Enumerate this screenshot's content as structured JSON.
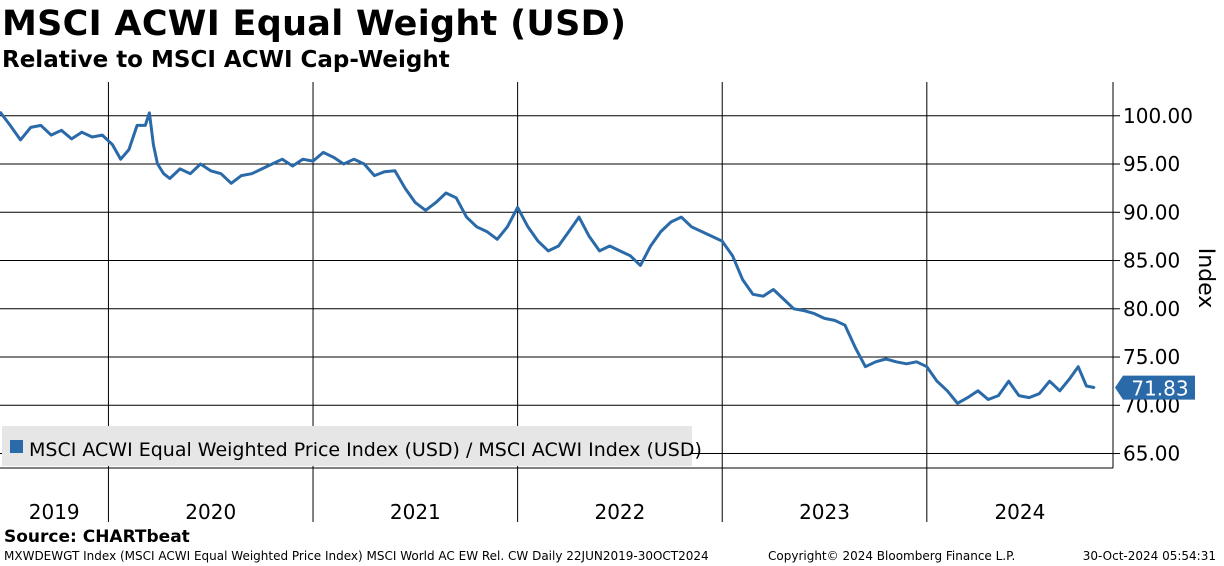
{
  "header": {
    "title": "MSCI ACWI Equal Weight (USD)",
    "subtitle": "Relative to MSCI ACWI Cap-Weight"
  },
  "footer": {
    "source": "Source: CHARTbeat",
    "ticker_info": "MXWDEWGT Index (MSCI ACWI Equal Weighted Price Index) MSCI World AC EW Rel. CW  Daily 22JUN2019-30OCT2024",
    "copyright": "Copyright© 2024 Bloomberg Finance L.P.",
    "timestamp": "30-Oct-2024 05:54:31"
  },
  "colors": {
    "series": "#2a6aa8",
    "grid": "#000000",
    "legend_bg": "#e6e6e6"
  },
  "chart_data": {
    "type": "line",
    "title": "MSCI ACWI Equal Weight (USD)",
    "subtitle": "Relative to MSCI ACWI Cap-Weight",
    "ylabel": "Index",
    "xlabel": "",
    "ylim": [
      63.5,
      103.5
    ],
    "xlim": [
      2019.47,
      2024.91
    ],
    "y_ticks": [
      65,
      70,
      75,
      80,
      85,
      90,
      95,
      100
    ],
    "y_tick_labels": [
      "65.00",
      "70.00",
      "75.00",
      "80.00",
      "85.00",
      "90.00",
      "95.00",
      "100.00"
    ],
    "x_ticks": [
      2019.5,
      2020,
      2021,
      2022,
      2023,
      2024
    ],
    "x_tick_labels": [
      "2019",
      "2020",
      "2021",
      "2022",
      "2023",
      "2024"
    ],
    "year_boundaries": [
      2020,
      2021,
      2022,
      2023,
      2024
    ],
    "last_value": 71.83,
    "last_value_label": "71.83",
    "legend": [
      "MSCI ACWI Equal Weighted Price Index (USD) / MSCI ACWI Index (USD)"
    ],
    "grid": true,
    "series": [
      {
        "name": "MSCI ACWI Equal Weighted Price Index (USD) / MSCI ACWI Index (USD)",
        "x": [
          2019.47,
          2019.52,
          2019.57,
          2019.62,
          2019.67,
          2019.72,
          2019.77,
          2019.82,
          2019.87,
          2019.92,
          2019.97,
          2020.02,
          2020.06,
          2020.1,
          2020.14,
          2020.18,
          2020.2,
          2020.22,
          2020.24,
          2020.27,
          2020.3,
          2020.35,
          2020.4,
          2020.45,
          2020.5,
          2020.55,
          2020.6,
          2020.65,
          2020.7,
          2020.75,
          2020.8,
          2020.85,
          2020.9,
          2020.95,
          2021.0,
          2021.05,
          2021.1,
          2021.15,
          2021.2,
          2021.25,
          2021.3,
          2021.35,
          2021.4,
          2021.45,
          2021.5,
          2021.55,
          2021.6,
          2021.65,
          2021.7,
          2021.75,
          2021.8,
          2021.85,
          2021.9,
          2021.95,
          2022.0,
          2022.05,
          2022.1,
          2022.15,
          2022.2,
          2022.25,
          2022.3,
          2022.35,
          2022.4,
          2022.45,
          2022.5,
          2022.55,
          2022.6,
          2022.65,
          2022.7,
          2022.75,
          2022.8,
          2022.85,
          2022.9,
          2022.95,
          2023.0,
          2023.05,
          2023.1,
          2023.15,
          2023.2,
          2023.25,
          2023.3,
          2023.35,
          2023.4,
          2023.45,
          2023.5,
          2023.55,
          2023.6,
          2023.65,
          2023.7,
          2023.75,
          2023.8,
          2023.85,
          2023.9,
          2023.95,
          2024.0,
          2024.05,
          2024.1,
          2024.15,
          2024.2,
          2024.25,
          2024.3,
          2024.35,
          2024.4,
          2024.45,
          2024.5,
          2024.55,
          2024.6,
          2024.65,
          2024.7,
          2024.74,
          2024.78,
          2024.82
        ],
        "values": [
          100.4,
          99.0,
          97.5,
          98.8,
          99.0,
          98.0,
          98.5,
          97.6,
          98.3,
          97.8,
          98.0,
          97.0,
          95.5,
          96.5,
          99.0,
          99.0,
          100.3,
          97.0,
          95.0,
          94.0,
          93.5,
          94.5,
          94.0,
          95.0,
          94.3,
          94.0,
          93.0,
          93.8,
          94.0,
          94.5,
          95.0,
          95.5,
          94.8,
          95.5,
          95.3,
          96.2,
          95.7,
          95.0,
          95.5,
          95.0,
          93.8,
          94.2,
          94.3,
          92.5,
          91.0,
          90.2,
          91.0,
          92.0,
          91.5,
          89.5,
          88.5,
          88.0,
          87.2,
          88.5,
          90.5,
          88.5,
          87.0,
          86.0,
          86.5,
          88.0,
          89.5,
          87.5,
          86.0,
          86.5,
          86.0,
          85.5,
          84.5,
          86.5,
          88.0,
          89.0,
          89.5,
          88.5,
          88.0,
          87.5,
          87.0,
          85.5,
          83.0,
          81.5,
          81.3,
          82.0,
          81.0,
          80.0,
          79.8,
          79.5,
          79.0,
          78.8,
          78.3,
          76.0,
          74.0,
          74.5,
          74.8,
          74.5,
          74.3,
          74.5,
          74.0,
          72.5,
          71.5,
          70.2,
          70.8,
          71.5,
          70.6,
          71.0,
          72.5,
          71.0,
          70.8,
          71.2,
          72.5,
          71.5,
          72.8,
          74.0,
          72.0,
          71.83
        ]
      }
    ]
  }
}
